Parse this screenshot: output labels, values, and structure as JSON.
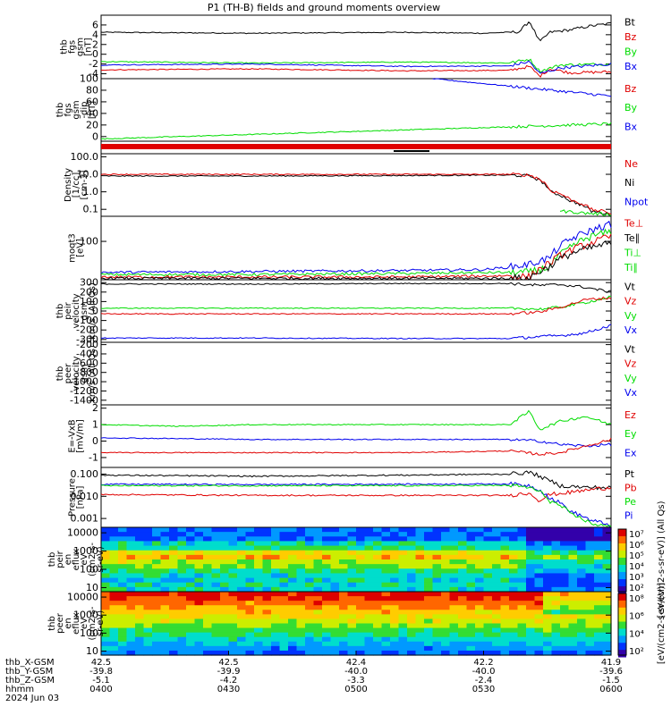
{
  "title": "P1 (TH-B) fields and ground moments overview",
  "colors": {
    "black": "#000000",
    "red": "#e00000",
    "green": "#00dd00",
    "blue": "#0000ee"
  },
  "chart_data": [
    {
      "type": "line",
      "ylabel": [
        "thb",
        "fgs",
        "gsm",
        "[nT]"
      ],
      "ylim": [
        -5,
        8
      ],
      "ticks": [
        "6",
        "4",
        "2",
        "0",
        "-2",
        "-4"
      ],
      "tick_values": [
        6,
        4,
        2,
        0,
        -2,
        -4
      ],
      "legend": [
        {
          "label": "Bt",
          "color": "black"
        },
        {
          "label": "Bz",
          "color": "red"
        },
        {
          "label": "By",
          "color": "green"
        },
        {
          "label": "Bx",
          "color": "blue"
        }
      ],
      "series": [
        {
          "color": "black",
          "x": [
            0,
            0.3,
            0.6,
            0.75,
            0.82,
            0.84,
            0.86,
            0.88,
            0.92,
            0.96,
            1
          ],
          "y": [
            4.5,
            4.3,
            4.5,
            4.3,
            4.6,
            6.8,
            2.5,
            4.5,
            5,
            5.8,
            6.3
          ]
        },
        {
          "color": "red",
          "x": [
            0,
            0.3,
            0.6,
            0.8,
            0.84,
            0.86,
            0.88,
            0.92,
            1
          ],
          "y": [
            -3.2,
            -3.0,
            -3.4,
            -3.3,
            -2.5,
            -4.5,
            -3,
            -3.8,
            -3.6
          ]
        },
        {
          "color": "green",
          "x": [
            0,
            0.3,
            0.6,
            0.8,
            0.84,
            0.86,
            0.9,
            1
          ],
          "y": [
            -1.5,
            -1.8,
            -1.6,
            -1.8,
            -1.0,
            -3.5,
            -2.2,
            -2.0
          ]
        },
        {
          "color": "blue",
          "x": [
            0,
            0.3,
            0.6,
            0.8,
            0.84,
            0.86,
            0.9,
            1
          ],
          "y": [
            -2.2,
            -2.0,
            -2.5,
            -2.4,
            -1.5,
            -4.0,
            -2.8,
            -2.0
          ]
        }
      ]
    },
    {
      "type": "line",
      "ylabel": [
        "thb",
        "fgs",
        "gsm",
        "-dip",
        "[nT]"
      ],
      "ylim": [
        -8,
        100
      ],
      "ticks": [
        "100",
        "80",
        "60",
        "40",
        "20",
        "0"
      ],
      "tick_values": [
        100,
        80,
        60,
        40,
        20,
        0
      ],
      "legend": [
        {
          "label": "Bz",
          "color": "red"
        },
        {
          "label": "By",
          "color": "green"
        },
        {
          "label": "Bx",
          "color": "blue"
        }
      ],
      "series": [
        {
          "color": "green",
          "x": [
            0,
            1
          ],
          "y": [
            -4,
            22
          ]
        },
        {
          "color": "blue",
          "x": [
            0.65,
            1
          ],
          "y": [
            100,
            70
          ]
        }
      ],
      "flat_markers": true
    },
    {
      "type": "line",
      "ylabel": [
        "Density",
        "[1/cc]",
        "[cm-3]"
      ],
      "log": true,
      "ylim": [
        0.04,
        150
      ],
      "ticks": [
        "100.0",
        "10.0",
        "1.0",
        "0.1"
      ],
      "tick_values": [
        100,
        10,
        1,
        0.1
      ],
      "legend": [
        {
          "label": "Ne",
          "color": "red"
        },
        {
          "label": "Ni",
          "color": "black"
        },
        {
          "label": "Npot",
          "color": "blue"
        }
      ],
      "series": [
        {
          "color": "black",
          "x": [
            0,
            0.3,
            0.6,
            0.8,
            0.84,
            0.88,
            0.92,
            0.96,
            1
          ],
          "y": [
            8,
            8,
            8.5,
            9,
            8,
            1,
            0.3,
            0.08,
            0.05
          ]
        },
        {
          "color": "red",
          "x": [
            0,
            0.3,
            0.6,
            0.8,
            0.84,
            0.88,
            0.92,
            0.96,
            1
          ],
          "y": [
            10,
            10,
            10,
            10,
            9,
            1.2,
            0.35,
            0.1,
            0.06
          ]
        },
        {
          "color": "green",
          "x": [
            0.9,
            0.95,
            1
          ],
          "y": [
            0.08,
            0.06,
            0.05
          ]
        }
      ]
    },
    {
      "type": "line",
      "ylabel": [
        "moqt3",
        "[eV]"
      ],
      "log": true,
      "ylim": [
        12,
        400
      ],
      "ticks": [
        "100"
      ],
      "tick_values": [
        100
      ],
      "legend": [
        {
          "label": "Te⊥",
          "color": "red"
        },
        {
          "label": "Te∥",
          "color": "black"
        },
        {
          "label": "Ti⊥",
          "color": "green"
        },
        {
          "label": "Ti∥",
          "color": "green"
        }
      ],
      "series": [
        {
          "color": "blue",
          "x": [
            0,
            0.3,
            0.6,
            0.75,
            0.8,
            0.84,
            0.88,
            0.92,
            0.96,
            1
          ],
          "y": [
            18,
            19,
            20,
            21,
            24,
            28,
            40,
            110,
            180,
            260
          ]
        },
        {
          "color": "green",
          "x": [
            0,
            0.3,
            0.6,
            0.8,
            0.84,
            0.88,
            0.92,
            0.96,
            1
          ],
          "y": [
            16,
            16,
            17,
            18,
            18,
            24,
            70,
            130,
            170
          ]
        },
        {
          "color": "red",
          "x": [
            0,
            0.3,
            0.6,
            0.8,
            0.84,
            0.88,
            0.92,
            0.96,
            1
          ],
          "y": [
            14,
            14,
            14,
            15,
            14,
            30,
            60,
            90,
            130
          ]
        },
        {
          "color": "black",
          "x": [
            0,
            0.3,
            0.6,
            0.8,
            0.84,
            0.88,
            0.92,
            0.96,
            1
          ],
          "y": [
            13,
            13,
            13,
            13,
            13,
            25,
            50,
            70,
            90
          ]
        }
      ]
    },
    {
      "type": "line",
      "ylabel": [
        "thb",
        "peir",
        "velocity",
        "gsm",
        "km/s (All Qs)"
      ],
      "ylim": [
        -330,
        330
      ],
      "ticks": [
        "300",
        "200",
        "100",
        "0",
        "-100",
        "-200",
        "-300"
      ],
      "tick_values": [
        300,
        200,
        100,
        0,
        -100,
        -200,
        -300
      ],
      "legend": [
        {
          "label": "Vt",
          "color": "black"
        },
        {
          "label": "Vz",
          "color": "red"
        },
        {
          "label": "Vy",
          "color": "green"
        },
        {
          "label": "Vx",
          "color": "blue"
        }
      ],
      "series": [
        {
          "color": "black",
          "x": [
            0,
            0.3,
            0.6,
            0.8,
            0.86,
            0.9,
            0.95,
            1
          ],
          "y": [
            285,
            285,
            290,
            290,
            270,
            280,
            250,
            200
          ]
        },
        {
          "color": "green",
          "x": [
            0,
            0.3,
            0.6,
            0.8,
            0.86,
            0.9,
            0.95,
            1
          ],
          "y": [
            30,
            30,
            30,
            30,
            20,
            40,
            90,
            150
          ]
        },
        {
          "color": "red",
          "x": [
            0,
            0.3,
            0.6,
            0.8,
            0.86,
            0.9,
            0.95,
            1
          ],
          "y": [
            -30,
            -30,
            -30,
            -30,
            -10,
            40,
            120,
            140
          ]
        },
        {
          "color": "blue",
          "x": [
            0,
            0.3,
            0.6,
            0.8,
            0.86,
            0.9,
            0.95,
            1
          ],
          "y": [
            -285,
            -285,
            -290,
            -290,
            -270,
            -260,
            -230,
            -150
          ]
        }
      ]
    },
    {
      "type": "line",
      "ylabel": [
        "thb",
        "peer",
        "velocity",
        "gsm",
        "km/s (All Qs)"
      ],
      "ylim": [
        -1500,
        -150
      ],
      "ticks": [
        "-200",
        "-400",
        "-600",
        "-800",
        "-1000",
        "-1200",
        "-1400"
      ],
      "tick_values": [
        -200,
        -400,
        -600,
        -800,
        -1000,
        -1200,
        -1400
      ],
      "legend": [
        {
          "label": "Vt",
          "color": "black"
        },
        {
          "label": "Vz",
          "color": "red"
        },
        {
          "label": "Vy",
          "color": "green"
        },
        {
          "label": "Vx",
          "color": "blue"
        }
      ],
      "series": []
    },
    {
      "type": "line",
      "ylabel": [
        "E=-VxB",
        "[mV/m]"
      ],
      "ylim": [
        -1.6,
        2.2
      ],
      "ticks": [
        "2",
        "1",
        "0",
        "-1"
      ],
      "tick_values": [
        2,
        1,
        0,
        -1
      ],
      "legend": [
        {
          "label": "Ez",
          "color": "red"
        },
        {
          "label": "Ey",
          "color": "green"
        },
        {
          "label": "Ex",
          "color": "blue"
        }
      ],
      "series": [
        {
          "color": "green",
          "x": [
            0,
            0.15,
            0.3,
            0.6,
            0.8,
            0.84,
            0.86,
            0.9,
            0.95,
            1
          ],
          "y": [
            1.0,
            0.9,
            1.0,
            1.0,
            1.0,
            1.8,
            0.7,
            1.2,
            1.5,
            1.0
          ]
        },
        {
          "color": "blue",
          "x": [
            0,
            0.3,
            0.6,
            0.8,
            0.86,
            0.9,
            0.95,
            1
          ],
          "y": [
            0.2,
            0.1,
            0.1,
            0.1,
            0.0,
            -0.2,
            -0.3,
            -0.2
          ]
        },
        {
          "color": "red",
          "x": [
            0,
            0.3,
            0.6,
            0.8,
            0.86,
            0.9,
            0.95,
            1
          ],
          "y": [
            -0.7,
            -0.7,
            -0.7,
            -0.6,
            -0.8,
            -0.7,
            -0.3,
            0.1
          ]
        }
      ]
    },
    {
      "type": "line",
      "ylabel": [
        "Pressure",
        "[nPa]"
      ],
      "log": true,
      "ylim": [
        0.0004,
        0.2
      ],
      "ticks": [
        "0.100",
        "0.010",
        "0.001"
      ],
      "tick_values": [
        0.1,
        0.01,
        0.001
      ],
      "legend": [
        {
          "label": "Pt",
          "color": "black"
        },
        {
          "label": "Pb",
          "color": "red"
        },
        {
          "label": "Pe",
          "color": "green"
        },
        {
          "label": "Pi",
          "color": "blue"
        }
      ],
      "series": [
        {
          "color": "black",
          "x": [
            0,
            0.3,
            0.6,
            0.8,
            0.84,
            0.87,
            0.9,
            0.95,
            1
          ],
          "y": [
            0.09,
            0.08,
            0.09,
            0.1,
            0.12,
            0.06,
            0.03,
            0.025,
            0.025
          ]
        },
        {
          "color": "red",
          "x": [
            0,
            0.3,
            0.6,
            0.8,
            0.84,
            0.86,
            0.88,
            0.92,
            1
          ],
          "y": [
            0.012,
            0.011,
            0.011,
            0.011,
            0.014,
            0.006,
            0.012,
            0.015,
            0.025
          ]
        },
        {
          "color": "blue",
          "x": [
            0,
            0.3,
            0.6,
            0.8,
            0.84,
            0.88,
            0.92,
            0.96,
            1
          ],
          "y": [
            0.035,
            0.034,
            0.035,
            0.036,
            0.03,
            0.008,
            0.002,
            0.0008,
            0.0005
          ]
        },
        {
          "color": "green",
          "x": [
            0,
            0.3,
            0.6,
            0.8,
            0.84,
            0.88,
            0.92,
            0.96,
            1
          ],
          "y": [
            0.03,
            0.03,
            0.03,
            0.031,
            0.025,
            0.006,
            0.0015,
            0.0006,
            0.0004
          ]
        }
      ]
    },
    {
      "type": "heatmap",
      "ylabel": [
        "thb",
        "peir",
        "en",
        "eflux",
        "eV",
        "(cm2-s-",
        "sr-eV)"
      ],
      "ticks": [
        "10000",
        "1000",
        "100",
        "10"
      ],
      "tick_values": [
        10000,
        1000,
        100,
        10
      ],
      "colorbar_ticks": [
        "10⁷",
        "10⁶",
        "10⁵",
        "10⁴",
        "10³",
        "10²"
      ],
      "colorbar_label": "[eV/(cm2-s-sr-eV)] (All Qs)"
    },
    {
      "type": "heatmap",
      "ylabel": [
        "thb",
        "peer",
        "en",
        "eflux",
        "eV",
        "(cm2-s-",
        "sr-eV)"
      ],
      "ticks": [
        "10000",
        "1000",
        "100",
        "10"
      ],
      "tick_values": [
        10000,
        1000,
        100,
        10
      ],
      "colorbar_ticks": [
        "10⁸",
        "10⁶",
        "10⁴",
        "10²"
      ],
      "colorbar_label": "[eV/(cm2-s-sr-eV)]"
    }
  ],
  "xaxis": {
    "row_labels": [
      "thb_X-GSM",
      "thb_Y-GSM",
      "thb_Z-GSM",
      "hhmm",
      "2024 Jun 03"
    ],
    "columns": [
      [
        "42.5",
        "-39.8",
        "-5.1",
        "0400"
      ],
      [
        "42.5",
        "-39.9",
        "-4.2",
        "0430"
      ],
      [
        "42.4",
        "-40.0",
        "-3.3",
        "0500"
      ],
      [
        "42.2",
        "-40.0",
        "-2.4",
        "0530"
      ],
      [
        "41.9",
        "-39.6",
        "-1.5",
        "0600"
      ]
    ]
  }
}
